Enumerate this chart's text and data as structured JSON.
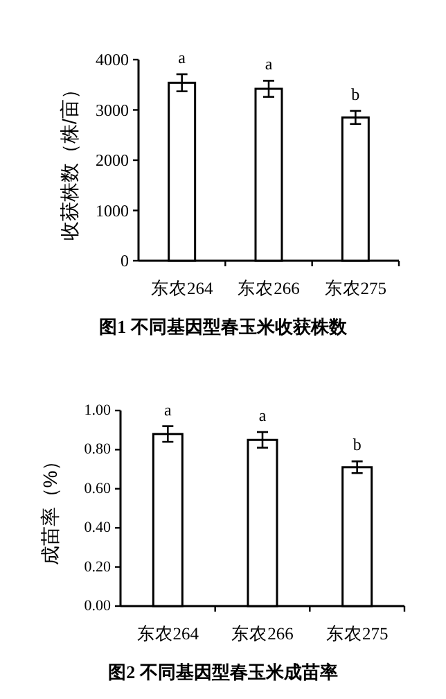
{
  "chart_data": [
    {
      "type": "bar",
      "title": "图1 不同基因型春玉米收获株数",
      "ylabel": "收获株数（株/亩）",
      "categories": [
        "东农264",
        "东农266",
        "东农275"
      ],
      "values": [
        3540,
        3420,
        2850
      ],
      "errors": [
        170,
        160,
        130
      ],
      "color": "#ffffff",
      "ylim": [
        0,
        4000
      ],
      "yticks": [
        0,
        1000,
        2000,
        3000,
        4000
      ],
      "grid": false,
      "annotations": [
        "a",
        "a",
        "b"
      ]
    },
    {
      "type": "bar",
      "title": "图2 不同基因型春玉米成苗率",
      "ylabel": "成苗率（%）",
      "categories": [
        "东农264",
        "东农266",
        "东农275"
      ],
      "values": [
        0.88,
        0.85,
        0.71
      ],
      "errors": [
        0.04,
        0.04,
        0.03
      ],
      "color": "#ffffff",
      "ylim": [
        0,
        1
      ],
      "yticks": [
        {
          "value": 0,
          "label": "0.00"
        },
        {
          "value": 0.2,
          "label": "0.20"
        },
        {
          "value": 0.4,
          "label": "0.40"
        },
        {
          "value": 0.6,
          "label": "0.60"
        },
        {
          "value": 0.8,
          "label": "0.80"
        },
        {
          "value": 1,
          "label": "1.00"
        }
      ],
      "grid": false,
      "annotations": [
        "a",
        "a",
        "b"
      ]
    }
  ]
}
